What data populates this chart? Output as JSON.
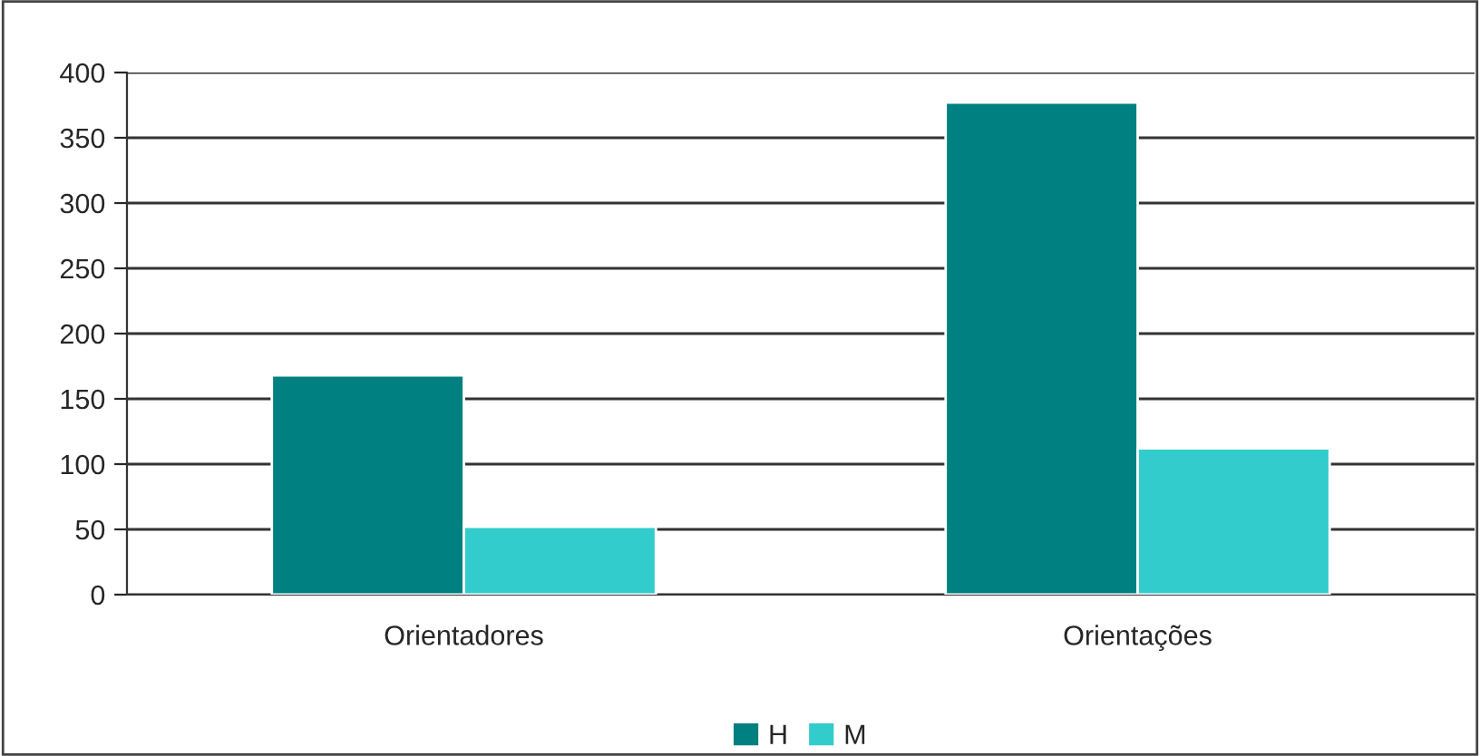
{
  "chart_data": {
    "type": "bar",
    "categories": [
      "Orientadores",
      "Orientações"
    ],
    "series": [
      {
        "name": "H",
        "color": "#008080",
        "values": [
          168,
          377
        ]
      },
      {
        "name": "M",
        "color": "#33cccc",
        "values": [
          52,
          112
        ]
      }
    ],
    "ylim": [
      0,
      400
    ],
    "yticks": [
      0,
      50,
      100,
      150,
      200,
      250,
      300,
      350,
      400
    ],
    "grid": "y",
    "legend": "bottom"
  }
}
